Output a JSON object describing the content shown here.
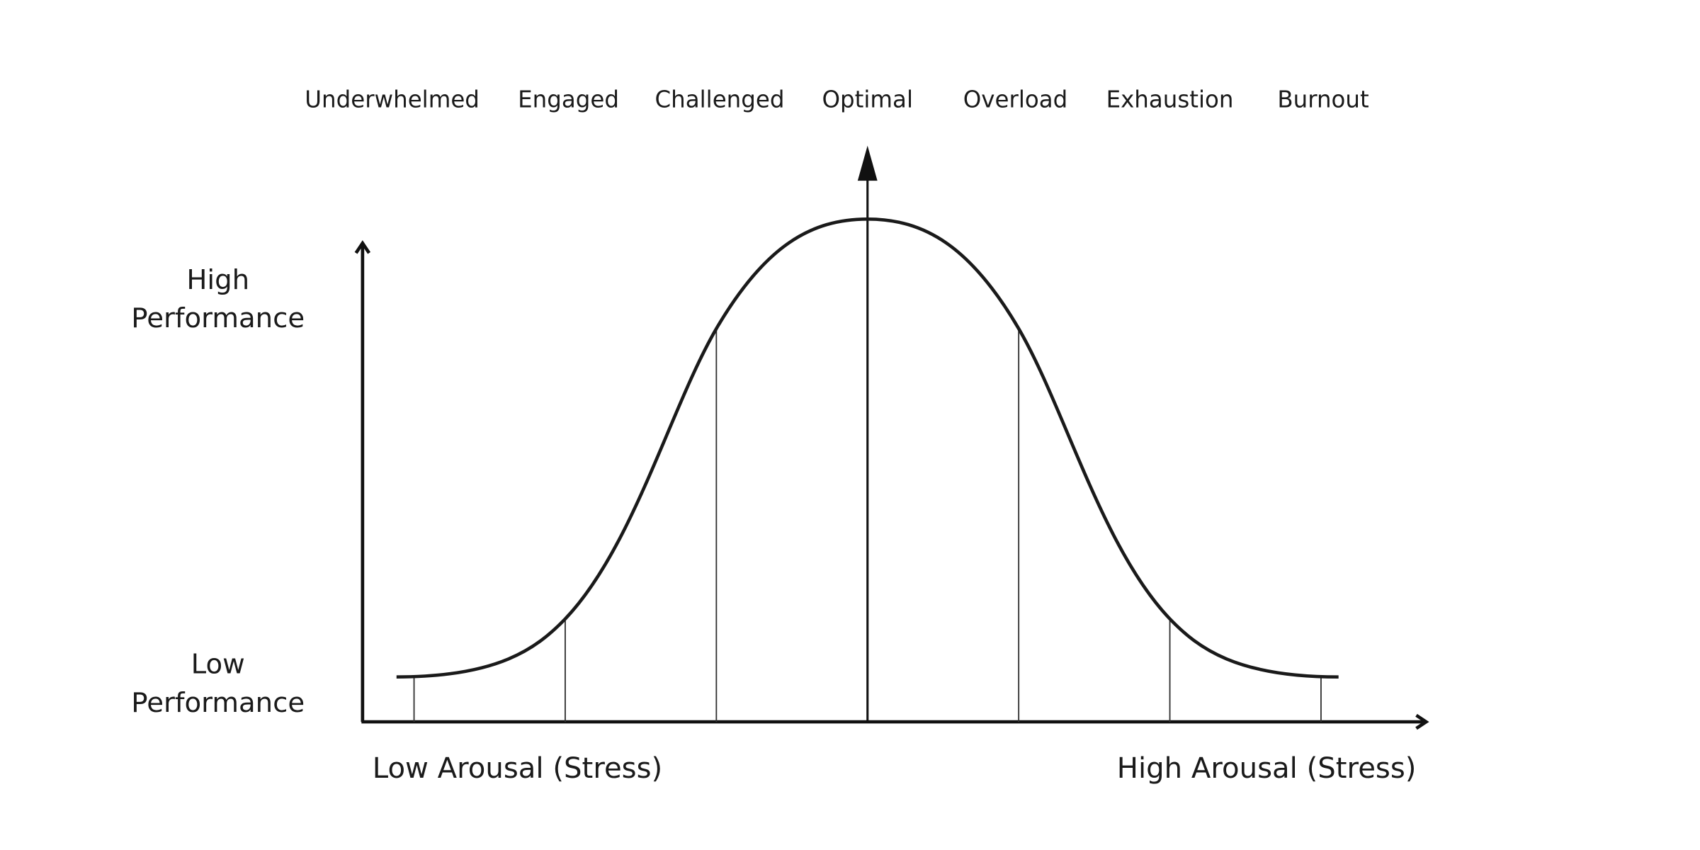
{
  "zones": [
    "Underwhelmed",
    "Engaged",
    "Challenged",
    "Optimal",
    "Overload",
    "Exhaustion",
    "Burnout"
  ],
  "y_axis": {
    "high": [
      "High",
      "Performance"
    ],
    "low": [
      "Low",
      "Performance"
    ]
  },
  "x_axis": {
    "low": "Low Arousal (Stress)",
    "high": "High Arousal (Stress)"
  }
}
